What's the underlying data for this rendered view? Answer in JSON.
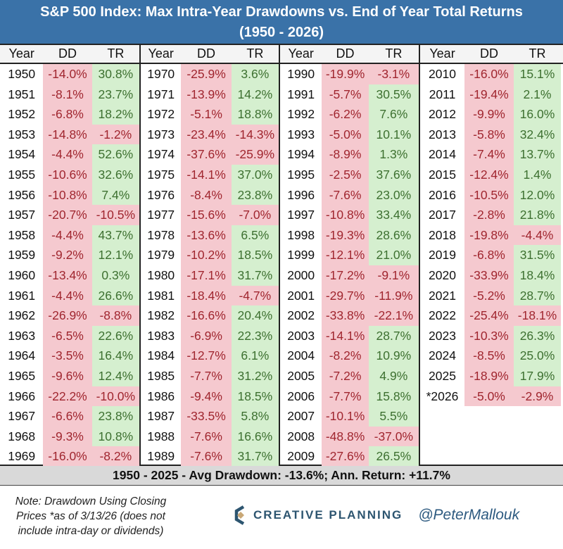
{
  "title": {
    "line1": "S&P 500 Index: Max Intra-Year Drawdowns vs. End of Year Total Returns",
    "line2": "(1950 - 2026)"
  },
  "colors": {
    "title_bg": "#3a72a8",
    "negative_bg": "#f5c9cf",
    "negative_text": "#a0262f",
    "positive_bg": "#d5efcf",
    "positive_text": "#3d7030"
  },
  "chart_data": {
    "type": "table",
    "columns": [
      "Year",
      "DD",
      "TR"
    ],
    "groups": [
      {
        "rows": [
          [
            "1950",
            "-14.0%",
            "30.8%"
          ],
          [
            "1951",
            "-8.1%",
            "23.7%"
          ],
          [
            "1952",
            "-6.8%",
            "18.2%"
          ],
          [
            "1953",
            "-14.8%",
            "-1.2%"
          ],
          [
            "1954",
            "-4.4%",
            "52.6%"
          ],
          [
            "1955",
            "-10.6%",
            "32.6%"
          ],
          [
            "1956",
            "-10.8%",
            "7.4%"
          ],
          [
            "1957",
            "-20.7%",
            "-10.5%"
          ],
          [
            "1958",
            "-4.4%",
            "43.7%"
          ],
          [
            "1959",
            "-9.2%",
            "12.1%"
          ],
          [
            "1960",
            "-13.4%",
            "0.3%"
          ],
          [
            "1961",
            "-4.4%",
            "26.6%"
          ],
          [
            "1962",
            "-26.9%",
            "-8.8%"
          ],
          [
            "1963",
            "-6.5%",
            "22.6%"
          ],
          [
            "1964",
            "-3.5%",
            "16.4%"
          ],
          [
            "1965",
            "-9.6%",
            "12.4%"
          ],
          [
            "1966",
            "-22.2%",
            "-10.0%"
          ],
          [
            "1967",
            "-6.6%",
            "23.8%"
          ],
          [
            "1968",
            "-9.3%",
            "10.8%"
          ],
          [
            "1969",
            "-16.0%",
            "-8.2%"
          ]
        ]
      },
      {
        "rows": [
          [
            "1970",
            "-25.9%",
            "3.6%"
          ],
          [
            "1971",
            "-13.9%",
            "14.2%"
          ],
          [
            "1972",
            "-5.1%",
            "18.8%"
          ],
          [
            "1973",
            "-23.4%",
            "-14.3%"
          ],
          [
            "1974",
            "-37.6%",
            "-25.9%"
          ],
          [
            "1975",
            "-14.1%",
            "37.0%"
          ],
          [
            "1976",
            "-8.4%",
            "23.8%"
          ],
          [
            "1977",
            "-15.6%",
            "-7.0%"
          ],
          [
            "1978",
            "-13.6%",
            "6.5%"
          ],
          [
            "1979",
            "-10.2%",
            "18.5%"
          ],
          [
            "1980",
            "-17.1%",
            "31.7%"
          ],
          [
            "1981",
            "-18.4%",
            "-4.7%"
          ],
          [
            "1982",
            "-16.6%",
            "20.4%"
          ],
          [
            "1983",
            "-6.9%",
            "22.3%"
          ],
          [
            "1984",
            "-12.7%",
            "6.1%"
          ],
          [
            "1985",
            "-7.7%",
            "31.2%"
          ],
          [
            "1986",
            "-9.4%",
            "18.5%"
          ],
          [
            "1987",
            "-33.5%",
            "5.8%"
          ],
          [
            "1988",
            "-7.6%",
            "16.6%"
          ],
          [
            "1989",
            "-7.6%",
            "31.7%"
          ]
        ]
      },
      {
        "rows": [
          [
            "1990",
            "-19.9%",
            "-3.1%"
          ],
          [
            "1991",
            "-5.7%",
            "30.5%"
          ],
          [
            "1992",
            "-6.2%",
            "7.6%"
          ],
          [
            "1993",
            "-5.0%",
            "10.1%"
          ],
          [
            "1994",
            "-8.9%",
            "1.3%"
          ],
          [
            "1995",
            "-2.5%",
            "37.6%"
          ],
          [
            "1996",
            "-7.6%",
            "23.0%"
          ],
          [
            "1997",
            "-10.8%",
            "33.4%"
          ],
          [
            "1998",
            "-19.3%",
            "28.6%"
          ],
          [
            "1999",
            "-12.1%",
            "21.0%"
          ],
          [
            "2000",
            "-17.2%",
            "-9.1%"
          ],
          [
            "2001",
            "-29.7%",
            "-11.9%"
          ],
          [
            "2002",
            "-33.8%",
            "-22.1%"
          ],
          [
            "2003",
            "-14.1%",
            "28.7%"
          ],
          [
            "2004",
            "-8.2%",
            "10.9%"
          ],
          [
            "2005",
            "-7.2%",
            "4.9%"
          ],
          [
            "2006",
            "-7.7%",
            "15.8%"
          ],
          [
            "2007",
            "-10.1%",
            "5.5%"
          ],
          [
            "2008",
            "-48.8%",
            "-37.0%"
          ],
          [
            "2009",
            "-27.6%",
            "26.5%"
          ]
        ]
      },
      {
        "rows": [
          [
            "2010",
            "-16.0%",
            "15.1%"
          ],
          [
            "2011",
            "-19.4%",
            "2.1%"
          ],
          [
            "2012",
            "-9.9%",
            "16.0%"
          ],
          [
            "2013",
            "-5.8%",
            "32.4%"
          ],
          [
            "2014",
            "-7.4%",
            "13.7%"
          ],
          [
            "2015",
            "-12.4%",
            "1.4%"
          ],
          [
            "2016",
            "-10.5%",
            "12.0%"
          ],
          [
            "2017",
            "-2.8%",
            "21.8%"
          ],
          [
            "2018",
            "-19.8%",
            "-4.4%"
          ],
          [
            "2019",
            "-6.8%",
            "31.5%"
          ],
          [
            "2020",
            "-33.9%",
            "18.4%"
          ],
          [
            "2021",
            "-5.2%",
            "28.7%"
          ],
          [
            "2022",
            "-25.4%",
            "-18.1%"
          ],
          [
            "2023",
            "-10.3%",
            "26.3%"
          ],
          [
            "2024",
            "-8.5%",
            "25.0%"
          ],
          [
            "2025",
            "-18.9%",
            "17.9%"
          ],
          [
            "*2026",
            "-5.0%",
            "-2.9%"
          ]
        ]
      }
    ]
  },
  "footer": {
    "summary": "1950 - 2025 - Avg Drawdown: -13.6%; Ann. Return: +11.7%"
  },
  "note": "Note: Drawdown Using Closing Prices *as of 3/13/26 (does not include intra-day or dividends)",
  "brand": {
    "logo_icon": "creative-planning-c-logo",
    "name": "CREATIVE PLANNING",
    "handle": "@PeterMallouk"
  }
}
